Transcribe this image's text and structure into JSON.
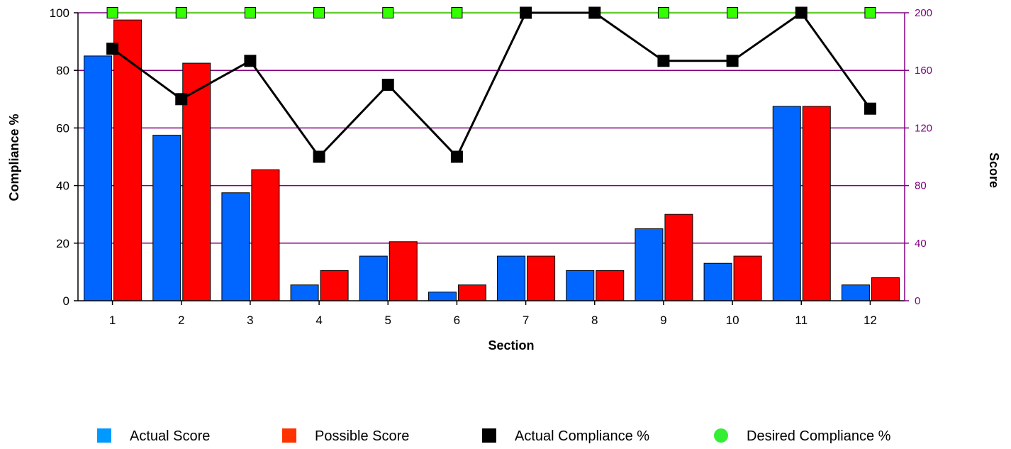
{
  "chart_data": {
    "type": "bar",
    "title": "",
    "xlabel": "Section",
    "ylabel": "Compliance %",
    "y2label": "Score",
    "categories": [
      "1",
      "2",
      "3",
      "4",
      "5",
      "6",
      "7",
      "8",
      "9",
      "10",
      "11",
      "12"
    ],
    "ylim": [
      0,
      100
    ],
    "y2lim": [
      0,
      200
    ],
    "yticks": [
      "0",
      "20",
      "40",
      "60",
      "80",
      "100"
    ],
    "y2ticks": [
      "0",
      "40",
      "80",
      "120",
      "160",
      "200"
    ],
    "grid": true,
    "legend_position": "bottom",
    "series": [
      {
        "name": "Actual Score",
        "kind": "bar",
        "axis": "right",
        "color": "#0066ff",
        "values": [
          170,
          115,
          75,
          11,
          31,
          6,
          31,
          21,
          50,
          26,
          135,
          11
        ]
      },
      {
        "name": "Possible Score",
        "kind": "bar",
        "axis": "right",
        "color": "#ff0000",
        "values": [
          195,
          165,
          91,
          21,
          41,
          11,
          31,
          21,
          60,
          31,
          135,
          16
        ]
      },
      {
        "name": "Actual Compliance %",
        "kind": "line",
        "axis": "left",
        "color": "#000000",
        "values": [
          87.5,
          70,
          83.3,
          50,
          75,
          50,
          100,
          100,
          83.3,
          83.3,
          100,
          66.7
        ]
      },
      {
        "name": "Desired Compliance %",
        "kind": "line",
        "axis": "left",
        "color": "#66cc33",
        "values": [
          100,
          100,
          100,
          100,
          100,
          100,
          100,
          100,
          100,
          100,
          100,
          100
        ]
      }
    ],
    "legend": [
      {
        "label": "Actual Score",
        "swatch_color": "#0099ff"
      },
      {
        "label": "Possible Score",
        "swatch_color": "#ff3300"
      },
      {
        "label": "Actual Compliance %",
        "swatch_color": "#000000"
      },
      {
        "label": "Desired Compliance %",
        "swatch_color": "#33ee33"
      }
    ],
    "colors": {
      "grid": "#800080",
      "right_axis": "#800080",
      "desired_marker": "#33ff00"
    }
  }
}
